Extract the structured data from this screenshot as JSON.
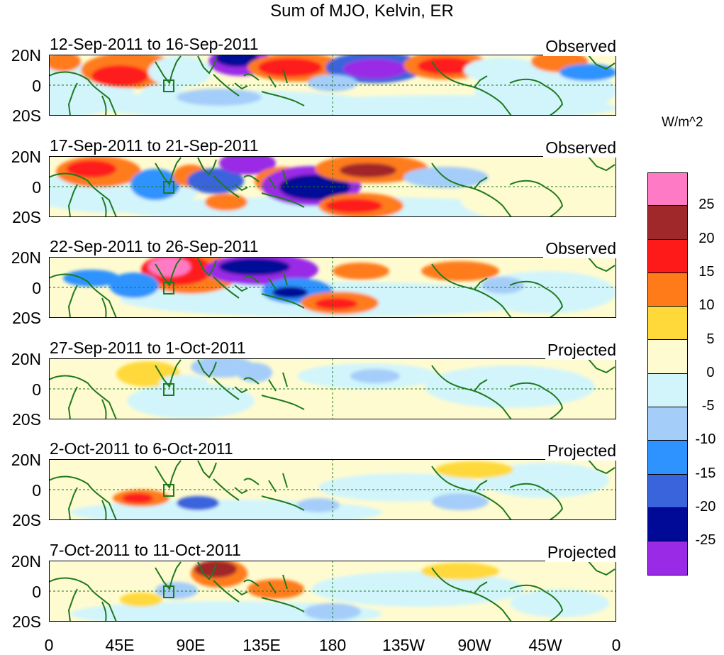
{
  "title": "Sum of MJO, Kelvin, ER",
  "units": "W/m^2",
  "y_labels": [
    "20N",
    "0",
    "20S"
  ],
  "x_labels": [
    "0",
    "45E",
    "90E",
    "135E",
    "180",
    "135W",
    "90W",
    "45W",
    "0"
  ],
  "panels": [
    {
      "date_range": "12-Sep-2011 to 16-Sep-2011",
      "type": "Observed"
    },
    {
      "date_range": "17-Sep-2011 to 21-Sep-2011",
      "type": "Observed"
    },
    {
      "date_range": "22-Sep-2011 to 26-Sep-2011",
      "type": "Observed"
    },
    {
      "date_range": "27-Sep-2011 to 1-Oct-2011",
      "type": "Projected"
    },
    {
      "date_range": "2-Oct-2011 to 6-Oct-2011",
      "type": "Projected"
    },
    {
      "date_range": "7-Oct-2011 to 11-Oct-2011",
      "type": "Projected"
    }
  ],
  "colorbar": {
    "colors_top_to_bottom": [
      "#ff7ac4",
      "#a0282a",
      "#ff1a1a",
      "#ff7b1a",
      "#ffd93a",
      "#fffbd0",
      "#d2f5fb",
      "#a5cdf9",
      "#2e93ff",
      "#3a64dc",
      "#000a96",
      "#9a2ae6"
    ],
    "tick_labels": [
      "25",
      "20",
      "15",
      "10",
      "5",
      "0",
      "-5",
      "-10",
      "-15",
      "-20",
      "-25"
    ]
  },
  "colors": {
    "coast": "#1e7a1e",
    "frame": "#000000"
  }
}
